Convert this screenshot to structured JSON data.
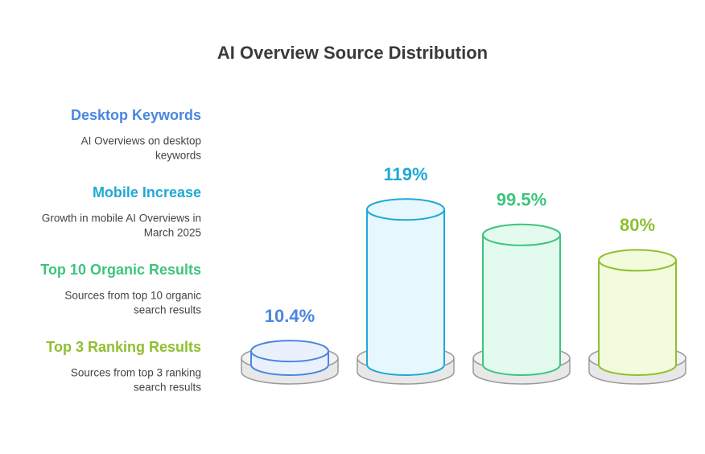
{
  "chart_data": {
    "type": "cylinder-bar",
    "title": "AI Overview Source Distribution",
    "categories": [
      "Desktop Keywords",
      "Mobile Increase",
      "Top 10 Organic Results",
      "Top 3 Ranking Results"
    ],
    "descriptions": [
      [
        "AI Overviews on desktop",
        "keywords"
      ],
      [
        "Growth in mobile AI Overviews in",
        "March 2025"
      ],
      [
        "Sources from top 10 organic",
        "search results"
      ],
      [
        "Sources from top 3 ranking",
        "search results"
      ]
    ],
    "values": [
      10.4,
      119,
      99.5,
      80
    ],
    "value_labels": [
      "10.4%",
      "119%",
      "99.5%",
      "80%"
    ],
    "colors": [
      "#4a86e0",
      "#1fa9d6",
      "#3ec47e",
      "#8fbf2f"
    ],
    "fills": [
      "#eaf1fd",
      "#e6f7fd",
      "#e2fbee",
      "#f2fbdc"
    ]
  }
}
